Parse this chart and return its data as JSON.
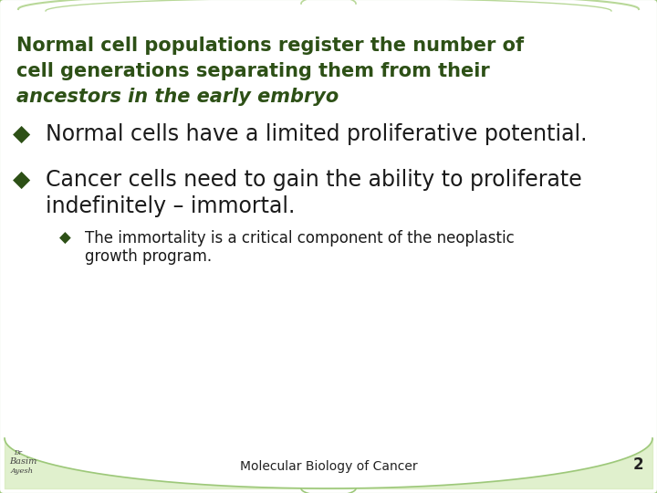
{
  "title_line1": "Normal cell populations register the number of",
  "title_line2": "cell generations separating them from their",
  "title_line3": "ancestors in the early embryo",
  "footer": "Molecular Biology of Cancer",
  "page_number": "2",
  "bg_color": "#ffffff",
  "title_color": "#2d5016",
  "bullet_color": "#1a1a1a",
  "diamond_color": "#2d5016",
  "small_diamond_color": "#2d5016",
  "footer_color": "#222222",
  "border_color": "#9dc87a",
  "arch_color": "#b8d898",
  "title_fontsize": 15,
  "bullet_fontsize": 15,
  "subbullet_fontsize": 12,
  "footer_fontsize": 10
}
